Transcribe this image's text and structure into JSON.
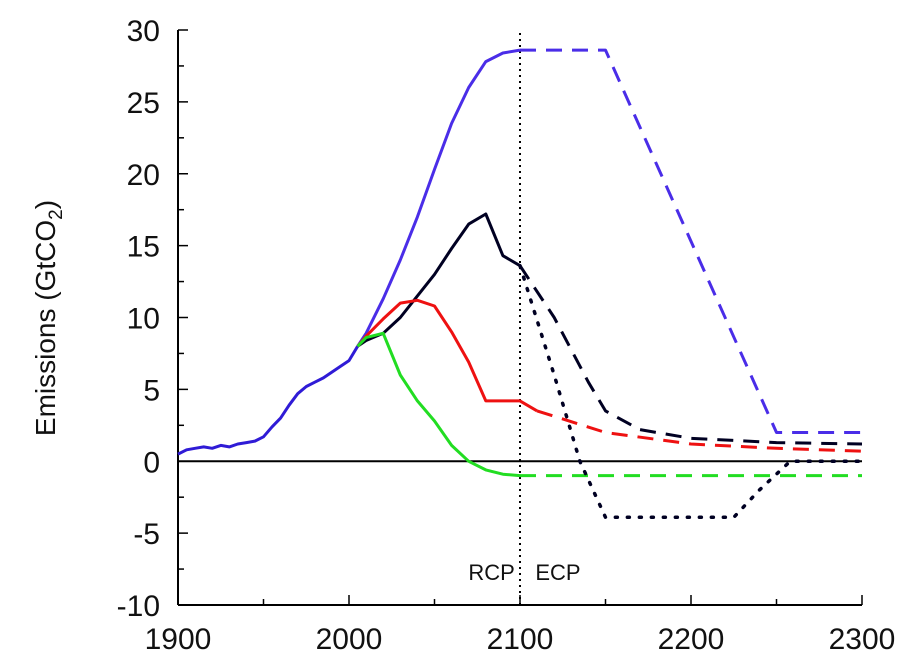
{
  "chart_data": {
    "type": "line",
    "title": "",
    "xlabel": "",
    "ylabel": "Emissions (GtCO",
    "ylabel_subscript": "2",
    "ylabel_suffix": ")",
    "xlim": [
      1900,
      2300
    ],
    "ylim": [
      -10,
      30
    ],
    "xticks": [
      1900,
      2000,
      2100,
      2200,
      2300
    ],
    "yticks": [
      -10,
      -5,
      0,
      5,
      10,
      15,
      20,
      25,
      30
    ],
    "grid": false,
    "divider_x": 2100,
    "annotations": [
      {
        "text": "RCP",
        "x": 2097,
        "y": -7.7,
        "anchor": "end"
      },
      {
        "text": "ECP",
        "x": 2109,
        "y": -7.7,
        "anchor": "start"
      }
    ],
    "colors": {
      "historical": "#2f1bd6",
      "rcp85": "#4a2de8",
      "rcp6": "#000022",
      "rcp45": "#ee1111",
      "rcp26": "#22dd22",
      "axis": "#000000"
    },
    "series": [
      {
        "id": "historical",
        "style": "solid",
        "x": [
          1900,
          1905,
          1910,
          1915,
          1920,
          1925,
          1930,
          1935,
          1940,
          1945,
          1950,
          1955,
          1960,
          1965,
          1970,
          1975,
          1980,
          1985,
          1990,
          1995,
          2000,
          2005
        ],
        "y": [
          0.5,
          0.8,
          0.9,
          1.0,
          0.9,
          1.1,
          1.0,
          1.2,
          1.3,
          1.4,
          1.7,
          2.4,
          3.0,
          3.9,
          4.7,
          5.2,
          5.5,
          5.8,
          6.2,
          6.6,
          7.0,
          8.0
        ]
      },
      {
        "id": "rcp85",
        "style": "solid",
        "x": [
          2005,
          2010,
          2020,
          2030,
          2040,
          2050,
          2060,
          2070,
          2080,
          2090,
          2100
        ],
        "y": [
          8.0,
          8.9,
          11.3,
          14.0,
          17.0,
          20.3,
          23.5,
          26.0,
          27.8,
          28.4,
          28.6
        ]
      },
      {
        "id": "rcp85-ext",
        "style": "dashed",
        "x": [
          2100,
          2150,
          2250,
          2300
        ],
        "y": [
          28.6,
          28.6,
          2.0,
          2.0
        ]
      },
      {
        "id": "rcp6",
        "style": "solid",
        "x": [
          2005,
          2010,
          2020,
          2030,
          2040,
          2050,
          2060,
          2070,
          2080,
          2090,
          2100
        ],
        "y": [
          8.0,
          8.4,
          8.9,
          10.0,
          11.5,
          13.0,
          14.8,
          16.5,
          17.2,
          14.3,
          13.6
        ]
      },
      {
        "id": "rcp6-ext",
        "style": "dashed",
        "x": [
          2100,
          2120,
          2140,
          2150,
          2170,
          2200,
          2250,
          2300
        ],
        "y": [
          13.6,
          10.0,
          5.5,
          3.5,
          2.2,
          1.6,
          1.3,
          1.2
        ]
      },
      {
        "id": "rcp45",
        "style": "solid",
        "x": [
          2005,
          2010,
          2020,
          2030,
          2040,
          2050,
          2060,
          2070,
          2080,
          2090,
          2100,
          2110
        ],
        "y": [
          8.0,
          8.7,
          9.9,
          11.0,
          11.2,
          10.8,
          9.0,
          6.9,
          4.2,
          4.2,
          4.2,
          3.5
        ]
      },
      {
        "id": "rcp45-ext",
        "style": "dashed",
        "x": [
          2110,
          2150,
          2200,
          2250,
          2300
        ],
        "y": [
          3.5,
          2.0,
          1.2,
          0.9,
          0.7
        ]
      },
      {
        "id": "rcp26",
        "style": "solid",
        "x": [
          2005,
          2010,
          2020,
          2030,
          2040,
          2050,
          2060,
          2070,
          2080,
          2090,
          2100
        ],
        "y": [
          8.0,
          8.6,
          8.9,
          6.0,
          4.2,
          2.8,
          1.1,
          0.0,
          -0.6,
          -0.9,
          -1.0
        ]
      },
      {
        "id": "rcp26-ext",
        "style": "dashed",
        "x": [
          2100,
          2300
        ],
        "y": [
          -1.0,
          -1.0
        ]
      },
      {
        "id": "rcp6-alt-ext",
        "style": "dotted",
        "x": [
          2100,
          2120,
          2135,
          2150,
          2175,
          2225,
          2240,
          2258,
          2300
        ],
        "y": [
          13.6,
          6.0,
          0.0,
          -3.9,
          -3.9,
          -3.9,
          -2.0,
          0.0,
          0.0
        ]
      }
    ]
  }
}
